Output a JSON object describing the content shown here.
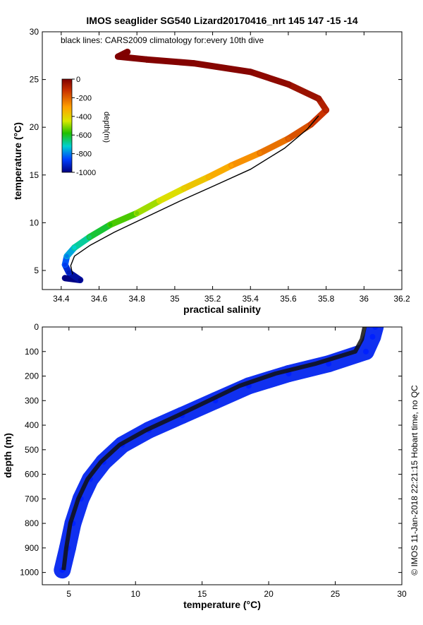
{
  "figure": {
    "title": "IMOS seaglider SG540 Lizard20170416_nrt 145  147  -15  -14",
    "credit": "© IMOS 11-Jan-2018 22:21:15 Hobart time, no QC"
  },
  "chart_data": [
    {
      "type": "scatter",
      "name": "TS diagram",
      "xlabel": "practical salinity",
      "ylabel": "temperature (°C)",
      "xlim": [
        34.3,
        36.2
      ],
      "ylim": [
        3,
        30
      ],
      "xticks": [
        34.4,
        34.6,
        34.8,
        35,
        35.2,
        35.4,
        35.6,
        35.8,
        36,
        36.2
      ],
      "xtick_labels": [
        "34.4",
        "34.6",
        "34.8",
        "35",
        "35.2",
        "35.4",
        "35.6",
        "35.8",
        "36",
        "36.2"
      ],
      "yticks": [
        5,
        10,
        15,
        20,
        25,
        30
      ],
      "ytick_labels": [
        "5",
        "10",
        "15",
        "20",
        "25",
        "30"
      ],
      "annotation": "black lines: CARS2009 climatology for:every 10th dive",
      "colorbar": {
        "label": "depth(m)",
        "ticks": [
          0,
          -200,
          -400,
          -600,
          -800,
          -1000
        ],
        "tick_labels": [
          "0",
          "-200",
          "-400",
          "-600",
          "-800",
          "-1000"
        ],
        "range": [
          -1000,
          0
        ]
      },
      "series": [
        {
          "style": "colored by depth",
          "points": [
            [
              34.42,
              4.2,
              -1000
            ],
            [
              34.5,
              4.0,
              -990
            ],
            [
              34.44,
              4.8,
              -940
            ],
            [
              34.42,
              5.6,
              -880
            ],
            [
              34.43,
              6.5,
              -800
            ],
            [
              34.47,
              7.4,
              -720
            ],
            [
              34.55,
              8.5,
              -650
            ],
            [
              34.66,
              9.8,
              -580
            ],
            [
              34.8,
              11.0,
              -520
            ],
            [
              34.92,
              12.3,
              -460
            ],
            [
              35.05,
              13.6,
              -400
            ],
            [
              35.18,
              14.8,
              -350
            ],
            [
              35.3,
              16.0,
              -300
            ],
            [
              35.45,
              17.3,
              -250
            ],
            [
              35.6,
              18.8,
              -200
            ],
            [
              35.72,
              20.3,
              -150
            ],
            [
              35.8,
              21.8,
              -100
            ],
            [
              35.76,
              23.0,
              -60
            ],
            [
              35.6,
              24.5,
              -30
            ],
            [
              35.4,
              25.8,
              -15
            ],
            [
              35.1,
              26.7,
              -8
            ],
            [
              34.85,
              27.1,
              -4
            ],
            [
              34.7,
              27.4,
              -2
            ],
            [
              34.75,
              27.9,
              -1
            ]
          ]
        },
        {
          "name": "CARS2009 climatology",
          "points": [
            [
              34.46,
              4.6
            ],
            [
              34.45,
              5.5
            ],
            [
              34.47,
              6.5
            ],
            [
              34.55,
              7.6
            ],
            [
              34.68,
              9.0
            ],
            [
              34.85,
              10.6
            ],
            [
              35.02,
              12.2
            ],
            [
              35.2,
              13.8
            ],
            [
              35.4,
              15.6
            ],
            [
              35.58,
              17.8
            ],
            [
              35.7,
              19.8
            ],
            [
              35.76,
              21.2
            ]
          ]
        }
      ]
    },
    {
      "type": "scatter",
      "name": "temperature-depth profile",
      "xlabel": "temperature (°C)",
      "ylabel": "depth (m)",
      "xlim": [
        3,
        30
      ],
      "ylim": [
        0,
        1050
      ],
      "y_reversed": true,
      "xticks": [
        5,
        10,
        15,
        20,
        25,
        30
      ],
      "xtick_labels": [
        "5",
        "10",
        "15",
        "20",
        "25",
        "30"
      ],
      "yticks": [
        0,
        100,
        200,
        300,
        400,
        500,
        600,
        700,
        800,
        900,
        1000
      ],
      "ytick_labels": [
        "0",
        "100",
        "200",
        "300",
        "400",
        "500",
        "600",
        "700",
        "800",
        "900",
        "1000"
      ],
      "series": [
        {
          "style": "blue glider",
          "points": [
            [
              28,
              0
            ],
            [
              27.8,
              40
            ],
            [
              27.3,
              100
            ],
            [
              24.5,
              150
            ],
            [
              21.5,
              190
            ],
            [
              18.5,
              240
            ],
            [
              16,
              300
            ],
            [
              13.5,
              360
            ],
            [
              11,
              420
            ],
            [
              9,
              480
            ],
            [
              7.6,
              550
            ],
            [
              6.6,
              620
            ],
            [
              5.9,
              700
            ],
            [
              5.3,
              800
            ],
            [
              4.9,
              900
            ],
            [
              4.5,
              990
            ]
          ]
        },
        {
          "name": "CARS2009 climatology",
          "points": [
            [
              27.2,
              0
            ],
            [
              27.0,
              50
            ],
            [
              26.5,
              100
            ],
            [
              23.5,
              150
            ],
            [
              20.5,
              190
            ],
            [
              17.8,
              240
            ],
            [
              15.5,
              300
            ],
            [
              13.2,
              360
            ],
            [
              10.8,
              420
            ],
            [
              8.8,
              480
            ],
            [
              7.4,
              550
            ],
            [
              6.4,
              620
            ],
            [
              5.7,
              700
            ],
            [
              5.1,
              800
            ],
            [
              4.8,
              900
            ],
            [
              4.6,
              990
            ]
          ]
        }
      ]
    }
  ]
}
